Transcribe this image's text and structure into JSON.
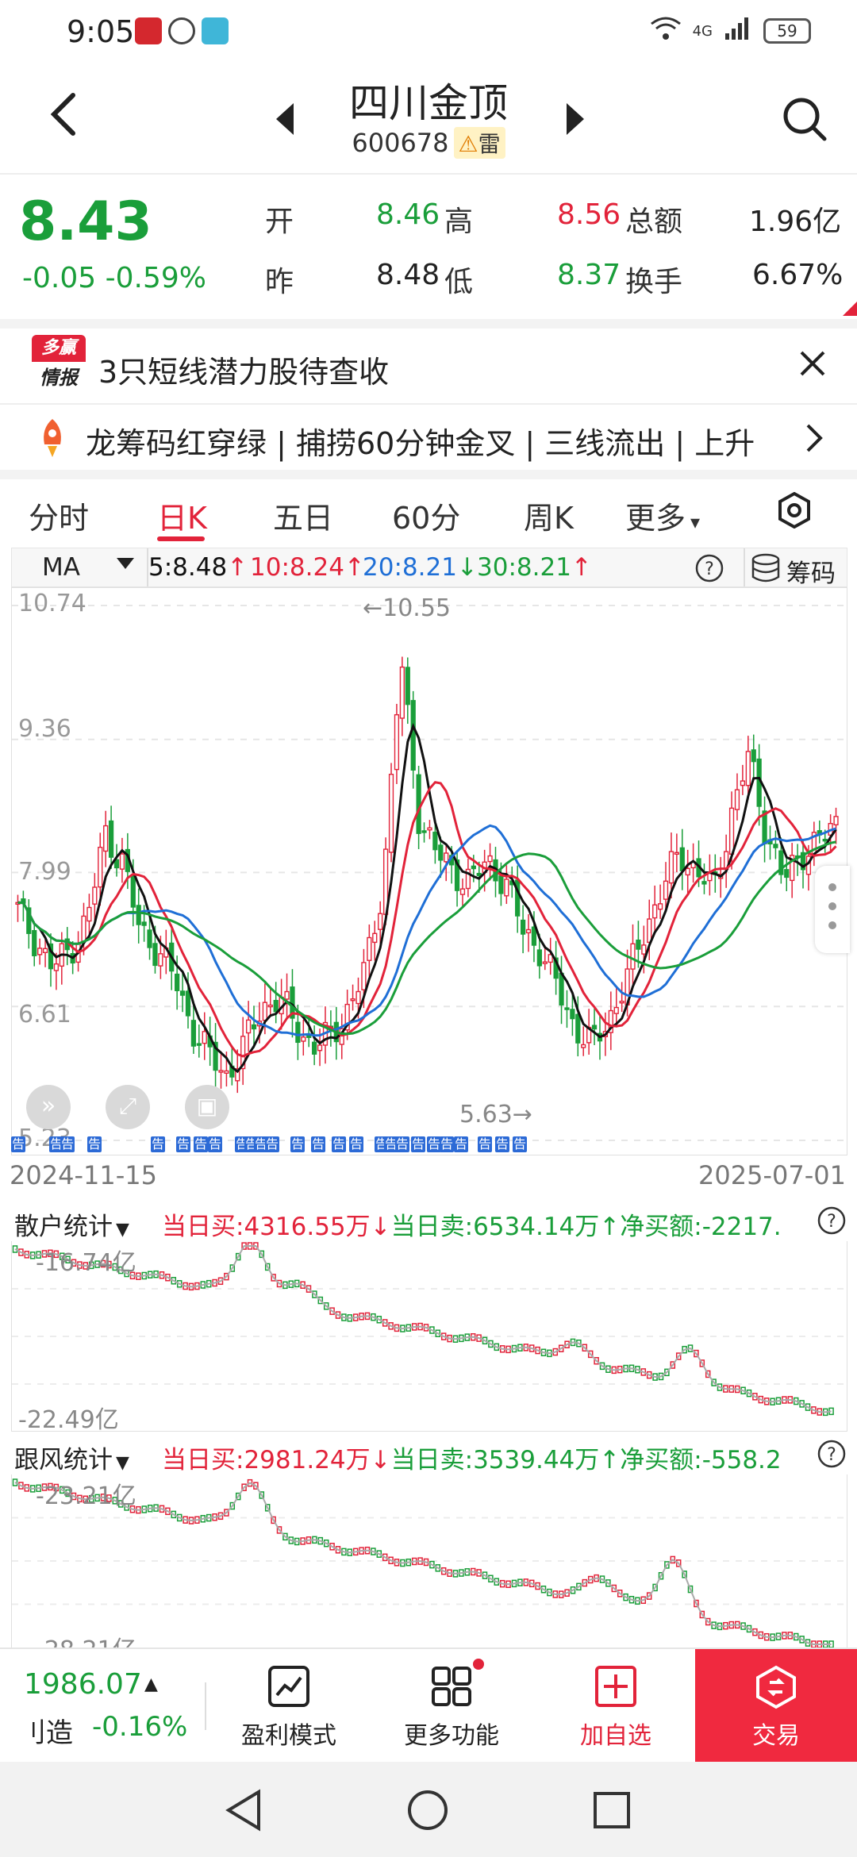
{
  "status_bar": {
    "time": "9:05",
    "network": "4G",
    "battery": "59"
  },
  "header": {
    "name": "四川金顶",
    "code": "600678",
    "risk_badge": "雷"
  },
  "quote": {
    "price": "8.43",
    "change": "-0.05",
    "change_pct": "-0.59%",
    "open_label": "开",
    "open": "8.46",
    "high_label": "高",
    "high": "8.56",
    "amount_label": "总额",
    "amount": "1.96亿",
    "prev_label": "昨",
    "prev": "8.48",
    "low_label": "低",
    "low": "8.37",
    "turnover_label": "换手",
    "turnover": "6.67%"
  },
  "news": {
    "logo_top": "多赢",
    "logo_bottom": "情报",
    "headline": "3只短线潜力股待查收",
    "ticker": "龙筹码红穿绿 | 捕捞60分钟金叉 | 三线流出 | 上升"
  },
  "tabs": [
    "分时",
    "日K",
    "五日",
    "60分",
    "周K",
    "更多"
  ],
  "active_tab": "日K",
  "ma": {
    "selector": "MA",
    "ma5": "5:8.48",
    "ma10": "10:8.24",
    "ma20": "20:8.21",
    "ma30": "30:8.21",
    "chips_label": "筹码"
  },
  "kline": {
    "y_ticks": [
      "10.74",
      "9.36",
      "7.99",
      "6.61",
      "5.23"
    ],
    "max_label": "←10.55",
    "min_label": "5.63→",
    "date_start": "2024-11-15",
    "date_end": "2025-07-01",
    "notice_marker": "告",
    "colors": {
      "up": "#e2233a",
      "down": "#1a9e3a",
      "ma5": "#111111",
      "ma10": "#e2233a",
      "ma20": "#1f6fd6",
      "ma30": "#1a9e3a"
    }
  },
  "retail_panel": {
    "label": "散户统计",
    "buy": "当日买:4316.55万↓",
    "sell": "当日卖:6534.14万↑",
    "net": "净买额:-2217.",
    "y_top": "-16.74亿",
    "y_bottom": "-22.49亿"
  },
  "follow_panel": {
    "label": "跟风统计",
    "buy": "当日买:2981.24万↓",
    "sell": "当日卖:3539.44万↑",
    "net": "净买额:-558.2",
    "y_top": "-23.21亿",
    "y_bottom": "-28.21亿"
  },
  "bottom_nav": {
    "index_value": "1986.07",
    "index_name": "刂造",
    "index_change": "-0.16%",
    "items": [
      "盈利模式",
      "更多功能",
      "加自选"
    ],
    "trade": "交易"
  },
  "chart_data": {
    "type": "candlestick",
    "x": [
      "2024-11-15",
      "2025-07-01"
    ],
    "ylim": [
      5.23,
      10.74
    ],
    "y_ticks": [
      10.74,
      9.36,
      7.99,
      6.61,
      5.23
    ],
    "annotations": [
      {
        "text": "←10.55",
        "value": 10.55
      },
      {
        "text": "5.63→",
        "value": 5.63
      }
    ],
    "series": [
      {
        "name": "MA5",
        "last": 8.48
      },
      {
        "name": "MA10",
        "last": 8.24
      },
      {
        "name": "MA20",
        "last": 8.21
      },
      {
        "name": "MA30",
        "last": 8.21
      }
    ],
    "close_path": [
      7.6,
      7.3,
      7.0,
      7.2,
      7.5,
      8.4,
      8.1,
      7.4,
      7.2,
      6.9,
      6.4,
      6.1,
      5.9,
      6.2,
      6.6,
      6.7,
      6.4,
      6.2,
      6.3,
      6.6,
      7.0,
      7.9,
      10.2,
      8.6,
      8.2,
      8.0,
      7.9,
      8.1,
      7.9,
      7.4,
      7.2,
      6.8,
      6.4,
      6.2,
      6.5,
      6.9,
      7.4,
      7.8,
      8.2,
      8.0,
      7.8,
      8.6,
      9.2,
      8.4,
      7.9,
      8.2,
      8.3,
      8.5
    ]
  }
}
